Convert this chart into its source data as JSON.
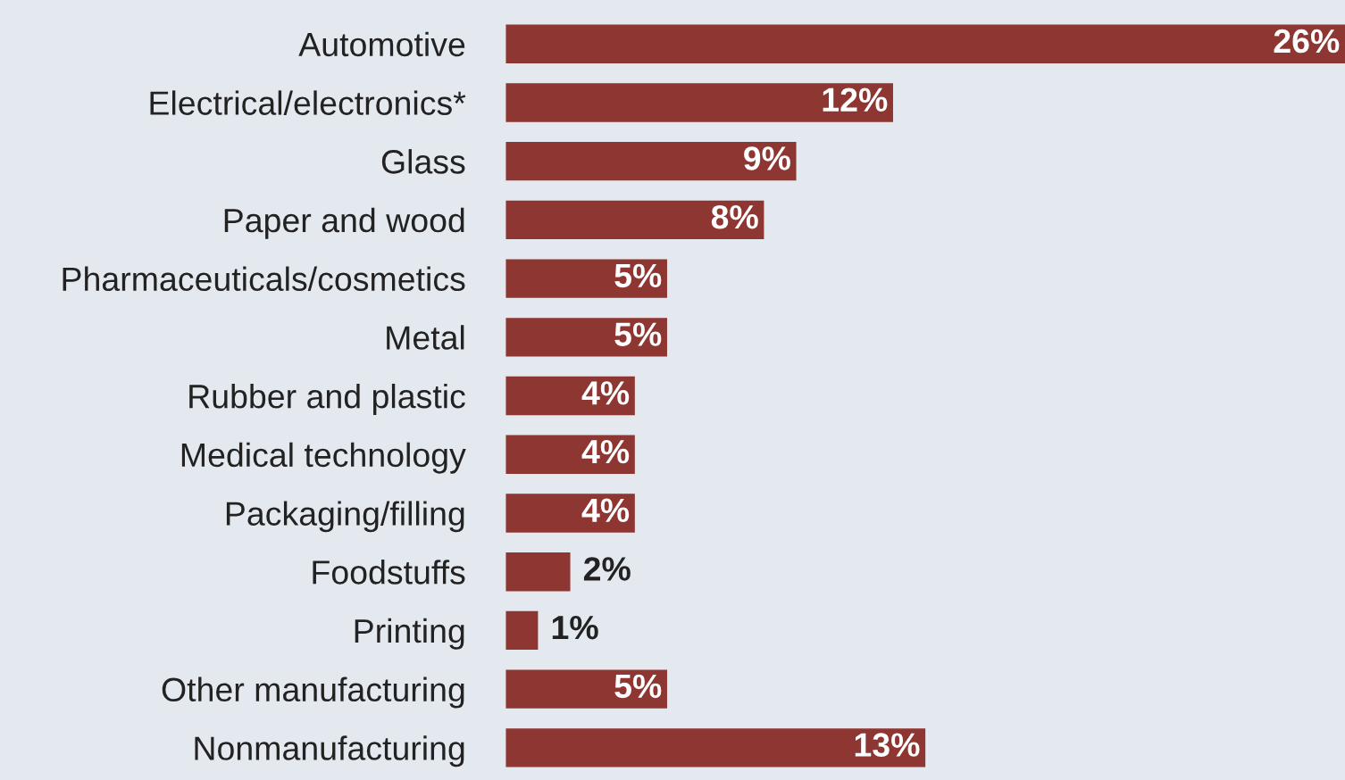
{
  "chart_data": {
    "type": "bar",
    "orientation": "horizontal",
    "categories": [
      "Automotive",
      "Electrical/electronics*",
      "Glass",
      "Paper and wood",
      "Pharmaceuticals/cosmetics",
      "Metal",
      "Rubber and plastic",
      "Medical technology",
      "Packaging/filling",
      "Foodstuffs",
      "Printing",
      "Other manufacturing",
      "Nonmanufacturing"
    ],
    "values": [
      26,
      12,
      9,
      8,
      5,
      5,
      4,
      4,
      4,
      2,
      1,
      5,
      13
    ],
    "value_labels": [
      "26%",
      "12%",
      "9%",
      "8%",
      "5%",
      "5%",
      "4%",
      "4%",
      "4%",
      "2%",
      "1%",
      "5%",
      "13%"
    ],
    "color": "#8e3632",
    "grid": false,
    "legend": false
  }
}
